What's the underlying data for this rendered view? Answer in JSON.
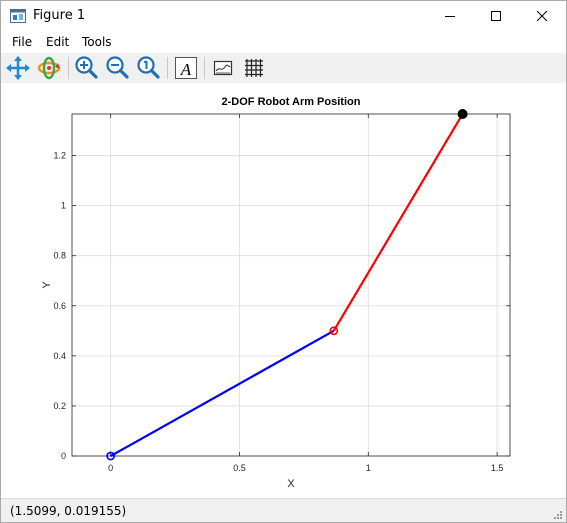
{
  "window": {
    "title": "Figure 1"
  },
  "menu": {
    "items": [
      "File",
      "Edit",
      "Tools"
    ]
  },
  "toolbar": {
    "tools": [
      "pan-icon",
      "rotate-icon",
      "zoom-in-icon",
      "zoom-out-icon",
      "zoom-reset-icon",
      "text-insert-icon",
      "legend-toggle-icon",
      "grid-toggle-icon"
    ],
    "text_tool_glyph": "A"
  },
  "status": {
    "coords": "(1.5099, 0.019155)"
  },
  "chart_data": {
    "type": "line",
    "title": "2-DOF Robot Arm Position",
    "xlabel": "X",
    "ylabel": "Y",
    "xlim": [
      -0.15,
      1.55
    ],
    "ylim": [
      0,
      1.366
    ],
    "xticks": [
      0,
      0.5,
      1,
      1.5
    ],
    "xtick_labels": [
      "0",
      "0.5",
      "1",
      "1.5"
    ],
    "yticks": [
      0,
      0.2,
      0.4,
      0.6,
      0.8,
      1.0,
      1.2
    ],
    "ytick_labels": [
      "0",
      "0.2",
      "0.4",
      "0.6",
      "0.8",
      "1",
      "1.2"
    ],
    "grid": true,
    "series": [
      {
        "x": [
          0,
          0.866
        ],
        "y": [
          0,
          0.5
        ],
        "color": "#0000ff"
      },
      {
        "x": [
          0.866,
          1.366
        ],
        "y": [
          0.5,
          1.366
        ],
        "color": "#ff0000"
      }
    ],
    "joints": [
      {
        "x": 0,
        "y": 0,
        "style": "open-circle",
        "color": "#0000ff"
      },
      {
        "x": 0.866,
        "y": 0.5,
        "style": "open-circle",
        "color": "#ff0000"
      },
      {
        "x": 1.366,
        "y": 1.366,
        "style": "filled-circle",
        "color": "#000000"
      }
    ]
  }
}
